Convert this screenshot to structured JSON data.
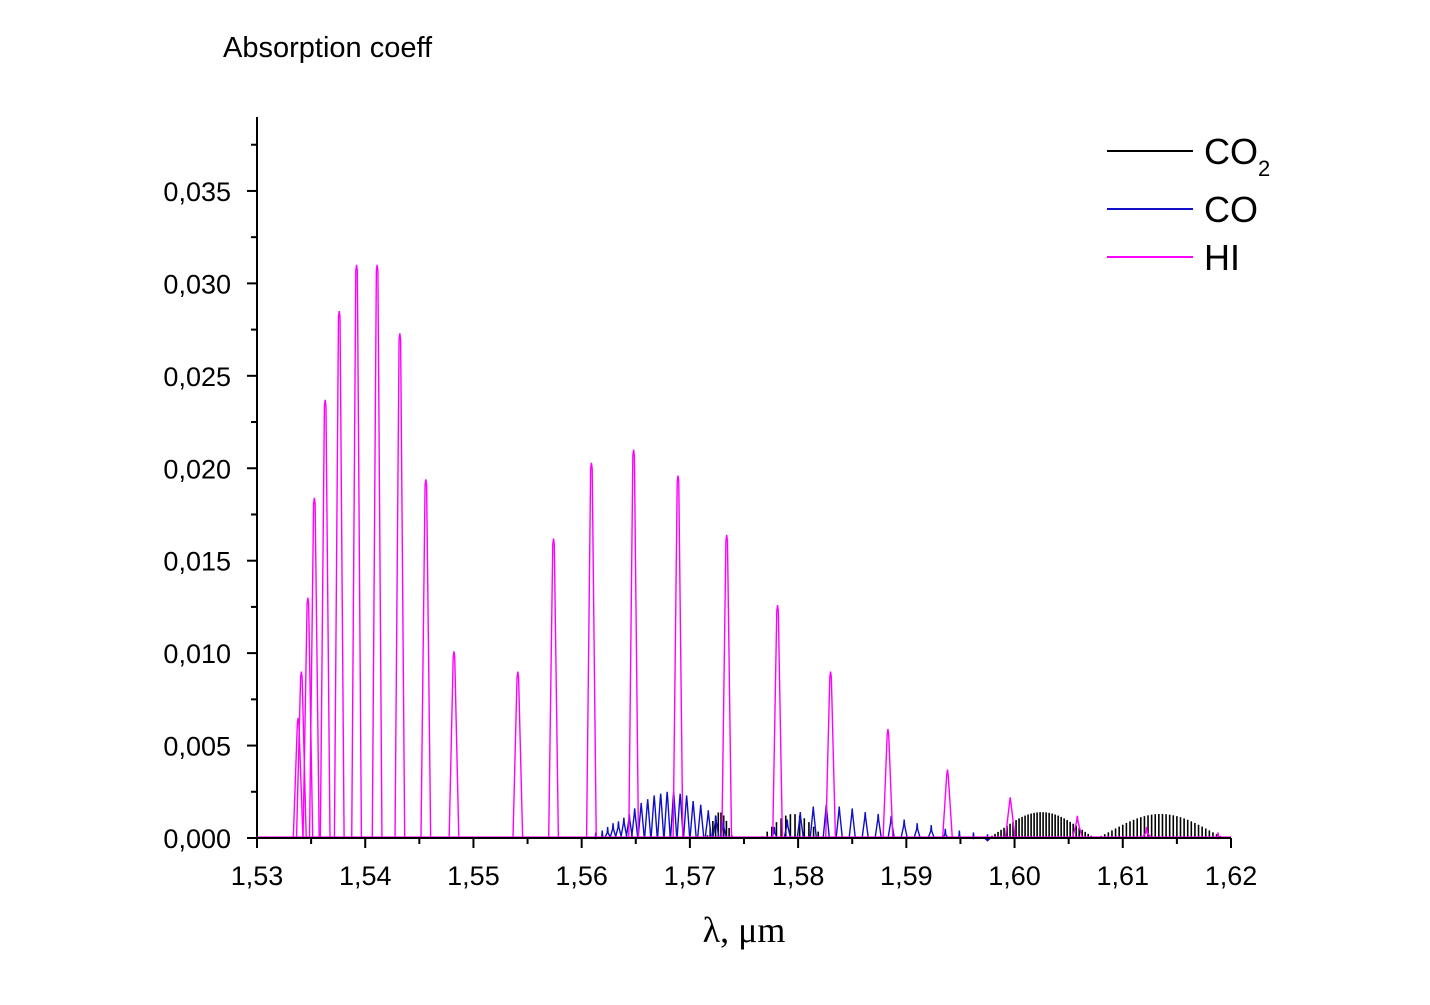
{
  "chart_data": {
    "type": "line",
    "title": "",
    "ylabel": "Absorption coeff",
    "xlabel": "λ, μm",
    "xlim": [
      1.53,
      1.62
    ],
    "ylim": [
      0,
      0.039
    ],
    "x_ticks": [
      "1,53",
      "1,54",
      "1,55",
      "1,56",
      "1,57",
      "1,58",
      "1,59",
      "1,60",
      "1,61",
      "1,62"
    ],
    "y_ticks": [
      "0,000",
      "0,005",
      "0,010",
      "0,015",
      "0,020",
      "0,025",
      "0,030",
      "0,035"
    ],
    "grid": false,
    "legend_position": "top-right",
    "series": [
      {
        "name": "CO",
        "name_subscript": "2",
        "color": "#000000",
        "description": "dense rotational bands",
        "bands": [
          {
            "start": 1.5715,
            "end": 1.574,
            "lines": 10,
            "peak": 0.0014
          },
          {
            "start": 1.5765,
            "end": 1.5825,
            "lines": 14,
            "peak": 0.0013
          },
          {
            "start": 1.5975,
            "end": 1.6075,
            "lines": 36,
            "peak": 0.0014
          },
          {
            "start": 1.6075,
            "end": 1.6195,
            "lines": 36,
            "peak": 0.0013
          }
        ]
      },
      {
        "name": "CO",
        "color": "#1010c8",
        "lines": [
          {
            "x": 1.5613,
            "y": 0.0003
          },
          {
            "x": 1.5619,
            "y": 0.0004
          },
          {
            "x": 1.5624,
            "y": 0.0006
          },
          {
            "x": 1.5629,
            "y": 0.0008
          },
          {
            "x": 1.5634,
            "y": 0.0009
          },
          {
            "x": 1.5639,
            "y": 0.0011
          },
          {
            "x": 1.5644,
            "y": 0.0013
          },
          {
            "x": 1.5649,
            "y": 0.0016
          },
          {
            "x": 1.5655,
            "y": 0.0019
          },
          {
            "x": 1.5661,
            "y": 0.0021
          },
          {
            "x": 1.5667,
            "y": 0.0023
          },
          {
            "x": 1.5673,
            "y": 0.0024
          },
          {
            "x": 1.5679,
            "y": 0.0025
          },
          {
            "x": 1.5685,
            "y": 0.0025
          },
          {
            "x": 1.5691,
            "y": 0.0024
          },
          {
            "x": 1.5697,
            "y": 0.0023
          },
          {
            "x": 1.5703,
            "y": 0.002
          },
          {
            "x": 1.571,
            "y": 0.0018
          },
          {
            "x": 1.5717,
            "y": 0.0015
          },
          {
            "x": 1.5724,
            "y": 0.0012
          },
          {
            "x": 1.5731,
            "y": 0.0009
          },
          {
            "x": 1.5778,
            "y": 0.0006
          },
          {
            "x": 1.579,
            "y": 0.001
          },
          {
            "x": 1.5802,
            "y": 0.0014
          },
          {
            "x": 1.5814,
            "y": 0.0017
          },
          {
            "x": 1.5826,
            "y": 0.0018
          },
          {
            "x": 1.5838,
            "y": 0.0017
          },
          {
            "x": 1.585,
            "y": 0.0016
          },
          {
            "x": 1.5862,
            "y": 0.0014
          },
          {
            "x": 1.5874,
            "y": 0.0013
          },
          {
            "x": 1.5886,
            "y": 0.0012
          },
          {
            "x": 1.5898,
            "y": 0.001
          },
          {
            "x": 1.591,
            "y": 0.0008
          },
          {
            "x": 1.5923,
            "y": 0.0007
          },
          {
            "x": 1.5936,
            "y": 0.0005
          },
          {
            "x": 1.5949,
            "y": 0.0004
          },
          {
            "x": 1.5962,
            "y": 0.0003
          },
          {
            "x": 1.5975,
            "y": 0.0002
          }
        ]
      },
      {
        "name": "HI",
        "color": "#ff00ff",
        "lines": [
          {
            "x": 1.5338,
            "y": 0.0065
          },
          {
            "x": 1.5341,
            "y": 0.009
          },
          {
            "x": 1.5347,
            "y": 0.013
          },
          {
            "x": 1.5353,
            "y": 0.0184
          },
          {
            "x": 1.5363,
            "y": 0.0237
          },
          {
            "x": 1.5376,
            "y": 0.0285
          },
          {
            "x": 1.5392,
            "y": 0.031
          },
          {
            "x": 1.5411,
            "y": 0.031
          },
          {
            "x": 1.5432,
            "y": 0.0273
          },
          {
            "x": 1.5456,
            "y": 0.0194
          },
          {
            "x": 1.5482,
            "y": 0.0101
          },
          {
            "x": 1.5541,
            "y": 0.009
          },
          {
            "x": 1.5574,
            "y": 0.0162
          },
          {
            "x": 1.5609,
            "y": 0.0203
          },
          {
            "x": 1.5648,
            "y": 0.021
          },
          {
            "x": 1.5689,
            "y": 0.0196
          },
          {
            "x": 1.5734,
            "y": 0.0164
          },
          {
            "x": 1.5781,
            "y": 0.0126
          },
          {
            "x": 1.583,
            "y": 0.009
          },
          {
            "x": 1.5883,
            "y": 0.0059
          },
          {
            "x": 1.5938,
            "y": 0.0037
          },
          {
            "x": 1.5996,
            "y": 0.0022
          },
          {
            "x": 1.6058,
            "y": 0.0012
          },
          {
            "x": 1.6122,
            "y": 0.0006
          },
          {
            "x": 1.6188,
            "y": 0.0003
          }
        ]
      }
    ]
  }
}
